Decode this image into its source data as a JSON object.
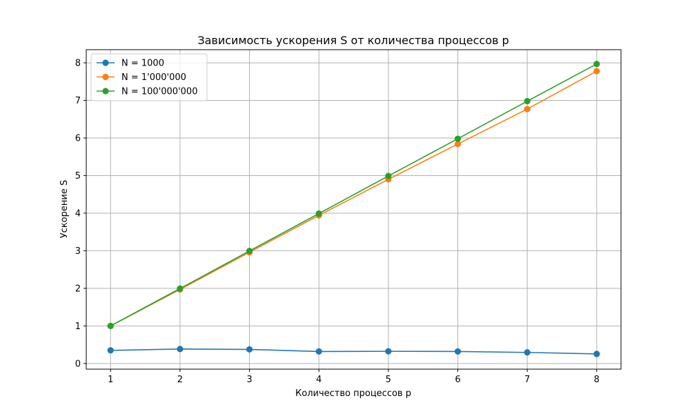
{
  "chart_data": {
    "type": "line",
    "title": "Зависимость ускорения S от количества процессов p",
    "xlabel": "Количество процессов p",
    "ylabel": "Ускорение S",
    "x": [
      1,
      2,
      3,
      4,
      5,
      6,
      7,
      8
    ],
    "xlim": [
      0.65,
      8.35
    ],
    "ylim": [
      -0.15,
      8.35
    ],
    "xticks": [
      1,
      2,
      3,
      4,
      5,
      6,
      7,
      8
    ],
    "yticks": [
      0,
      1,
      2,
      3,
      4,
      5,
      6,
      7,
      8
    ],
    "grid": true,
    "legend_position": "top-left",
    "marker": "circle",
    "series": [
      {
        "name": "N = 1000",
        "color": "#1f77b4",
        "values": [
          0.35,
          0.385,
          0.375,
          0.32,
          0.325,
          0.32,
          0.295,
          0.255
        ]
      },
      {
        "name": "N = 1'000'000",
        "color": "#ff7f0e",
        "values": [
          1.0,
          1.97,
          2.96,
          3.94,
          4.9,
          5.84,
          6.77,
          7.78
        ]
      },
      {
        "name": "N = 100'000'000",
        "color": "#2ca02c",
        "values": [
          1.0,
          1.995,
          2.995,
          3.99,
          4.99,
          5.98,
          6.98,
          7.97
        ]
      }
    ]
  }
}
